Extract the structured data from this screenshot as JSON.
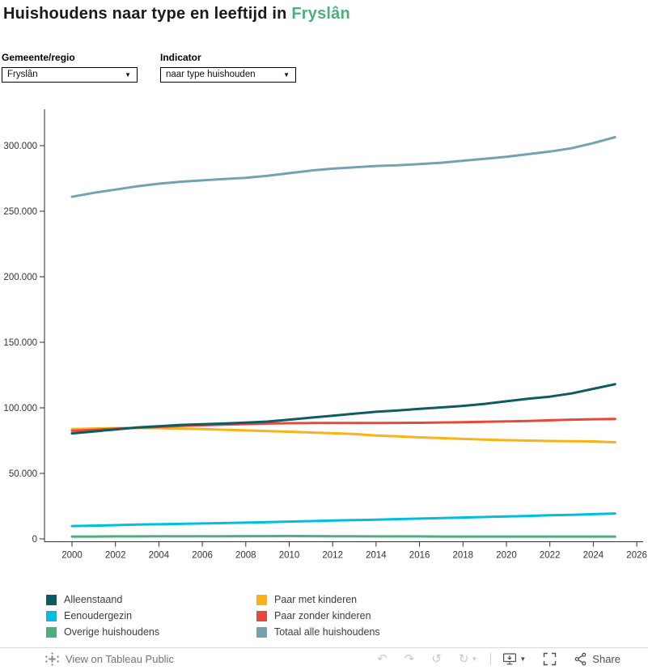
{
  "title": {
    "prefix": "Huishoudens naar type en leeftijd in ",
    "highlight": "Fryslân",
    "highlight_color": "#4cae7d"
  },
  "filters": {
    "gemeente": {
      "label": "Gemeente/regio",
      "value": "Fryslân"
    },
    "indicator": {
      "label": "Indicator",
      "value": "naar type huishouden"
    }
  },
  "chart_data": {
    "type": "line",
    "title": "Huishoudens naar type en leeftijd in Fryslân",
    "xlabel": "",
    "ylabel": "",
    "x": [
      2000,
      2001,
      2002,
      2003,
      2004,
      2005,
      2006,
      2007,
      2008,
      2009,
      2010,
      2011,
      2012,
      2013,
      2014,
      2015,
      2016,
      2017,
      2018,
      2019,
      2020,
      2021,
      2022,
      2023,
      2024,
      2025
    ],
    "series": [
      {
        "name": "Alleenstaand",
        "color": "#0d5c63",
        "values": [
          80500,
          82000,
          83500,
          85000,
          86000,
          87000,
          87500,
          88000,
          88700,
          89500,
          91000,
          92500,
          94000,
          95500,
          97000,
          98000,
          99200,
          100300,
          101500,
          103000,
          105000,
          107000,
          108500,
          111000,
          114500,
          118000
        ]
      },
      {
        "name": "Eenoudergezin",
        "color": "#00bee0",
        "values": [
          9800,
          10100,
          10500,
          10900,
          11200,
          11500,
          11800,
          12100,
          12400,
          12800,
          13200,
          13600,
          14000,
          14400,
          14700,
          15100,
          15500,
          15900,
          16300,
          16700,
          17100,
          17500,
          18000,
          18400,
          18900,
          19400
        ]
      },
      {
        "name": "Overige huishoudens",
        "color": "#4fae7d",
        "values": [
          1800,
          1800,
          1900,
          1900,
          2000,
          2000,
          2000,
          2000,
          2100,
          2100,
          2200,
          2100,
          2000,
          2000,
          1900,
          1900,
          1900,
          1800,
          1800,
          1800,
          1800,
          1800,
          1800,
          1800,
          1800,
          1800
        ]
      },
      {
        "name": "Paar met kinderen",
        "color": "#fbb117",
        "values": [
          83800,
          84200,
          84500,
          84600,
          84500,
          84200,
          83800,
          83300,
          82800,
          82300,
          81800,
          81200,
          80600,
          80000,
          78800,
          78200,
          77500,
          76900,
          76300,
          75800,
          75300,
          75000,
          74700,
          74500,
          74400,
          73700
        ]
      },
      {
        "name": "Paar zonder kinderen",
        "color": "#e6493c",
        "values": [
          82500,
          83200,
          84000,
          84800,
          85500,
          86200,
          86700,
          87200,
          87600,
          88000,
          88300,
          88400,
          88400,
          88400,
          88400,
          88500,
          88600,
          88800,
          89000,
          89300,
          89600,
          90000,
          90500,
          91000,
          91300,
          91500
        ]
      },
      {
        "name": "Totaal alle huishoudens",
        "color": "#74a3b0",
        "values": [
          261000,
          264000,
          266500,
          269000,
          271000,
          272500,
          273500,
          274500,
          275500,
          277000,
          279000,
          281000,
          282500,
          283500,
          284500,
          285000,
          286000,
          287000,
          288500,
          290000,
          291500,
          293500,
          295500,
          298000,
          302000,
          306500
        ]
      }
    ],
    "x_ticks": [
      "2000",
      "2002",
      "2004",
      "2006",
      "2008",
      "2010",
      "2012",
      "2014",
      "2016",
      "2018",
      "2020",
      "2022",
      "2024",
      "2026"
    ],
    "y_ticks": [
      {
        "value": 0,
        "label": "0"
      },
      {
        "value": 50000,
        "label": "50.000"
      },
      {
        "value": 100000,
        "label": "100.000"
      },
      {
        "value": 150000,
        "label": "150.000"
      },
      {
        "value": 200000,
        "label": "200.000"
      },
      {
        "value": 250000,
        "label": "250.000"
      },
      {
        "value": 300000,
        "label": "300.000"
      }
    ],
    "ylim": [
      0,
      328000
    ],
    "xlim": [
      1998.7,
      2026.3
    ],
    "grid": false,
    "legend_position": "bottom"
  },
  "legend": {
    "items": [
      {
        "label": "Alleenstaand",
        "color": "#0d5c63"
      },
      {
        "label": "Eenoudergezin",
        "color": "#00bee0"
      },
      {
        "label": "Overige huishoudens",
        "color": "#4fae7d"
      },
      {
        "label": "Paar met kinderen",
        "color": "#fbb117"
      },
      {
        "label": "Paar zonder kinderen",
        "color": "#e6493c"
      },
      {
        "label": "Totaal alle huishoudens",
        "color": "#74a3b0"
      }
    ]
  },
  "toolbar": {
    "view_label": "View on Tableau Public",
    "share_label": "Share"
  }
}
